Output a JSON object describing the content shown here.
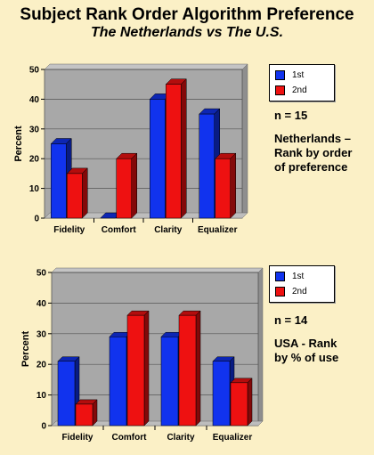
{
  "title": "Subject Rank Order Algorithm Preference",
  "subtitle": "The Netherlands vs The U.S.",
  "colors": {
    "first": "#1133ee",
    "second": "#ee1111",
    "plot_bg": "#a8a8a8"
  },
  "chart_data": [
    {
      "type": "bar",
      "categories": [
        "Fidelity",
        "Comfort",
        "Clarity",
        "Equalizer"
      ],
      "series": [
        {
          "name": "1st",
          "values": [
            25,
            0,
            40,
            35
          ]
        },
        {
          "name": "2nd",
          "values": [
            15,
            20,
            45,
            20
          ]
        }
      ],
      "ylabel": "Percent",
      "ylim": [
        0,
        50
      ],
      "yticks": [
        0,
        10,
        20,
        30,
        40,
        50
      ],
      "grid": true,
      "legend": "right",
      "annotation": "n = 15",
      "description": "Netherlands –\nRank by order\nof  preference"
    },
    {
      "type": "bar",
      "categories": [
        "Fidelity",
        "Comfort",
        "Clarity",
        "Equalizer"
      ],
      "series": [
        {
          "name": "1st",
          "values": [
            21,
            29,
            29,
            21
          ]
        },
        {
          "name": "2nd",
          "values": [
            7,
            36,
            36,
            14
          ]
        }
      ],
      "ylabel": "Percent",
      "ylim": [
        0,
        50
      ],
      "yticks": [
        0,
        10,
        20,
        30,
        40,
        50
      ],
      "grid": true,
      "legend": "right",
      "annotation": "n = 14",
      "description": "USA - Rank\nby % of use"
    }
  ]
}
